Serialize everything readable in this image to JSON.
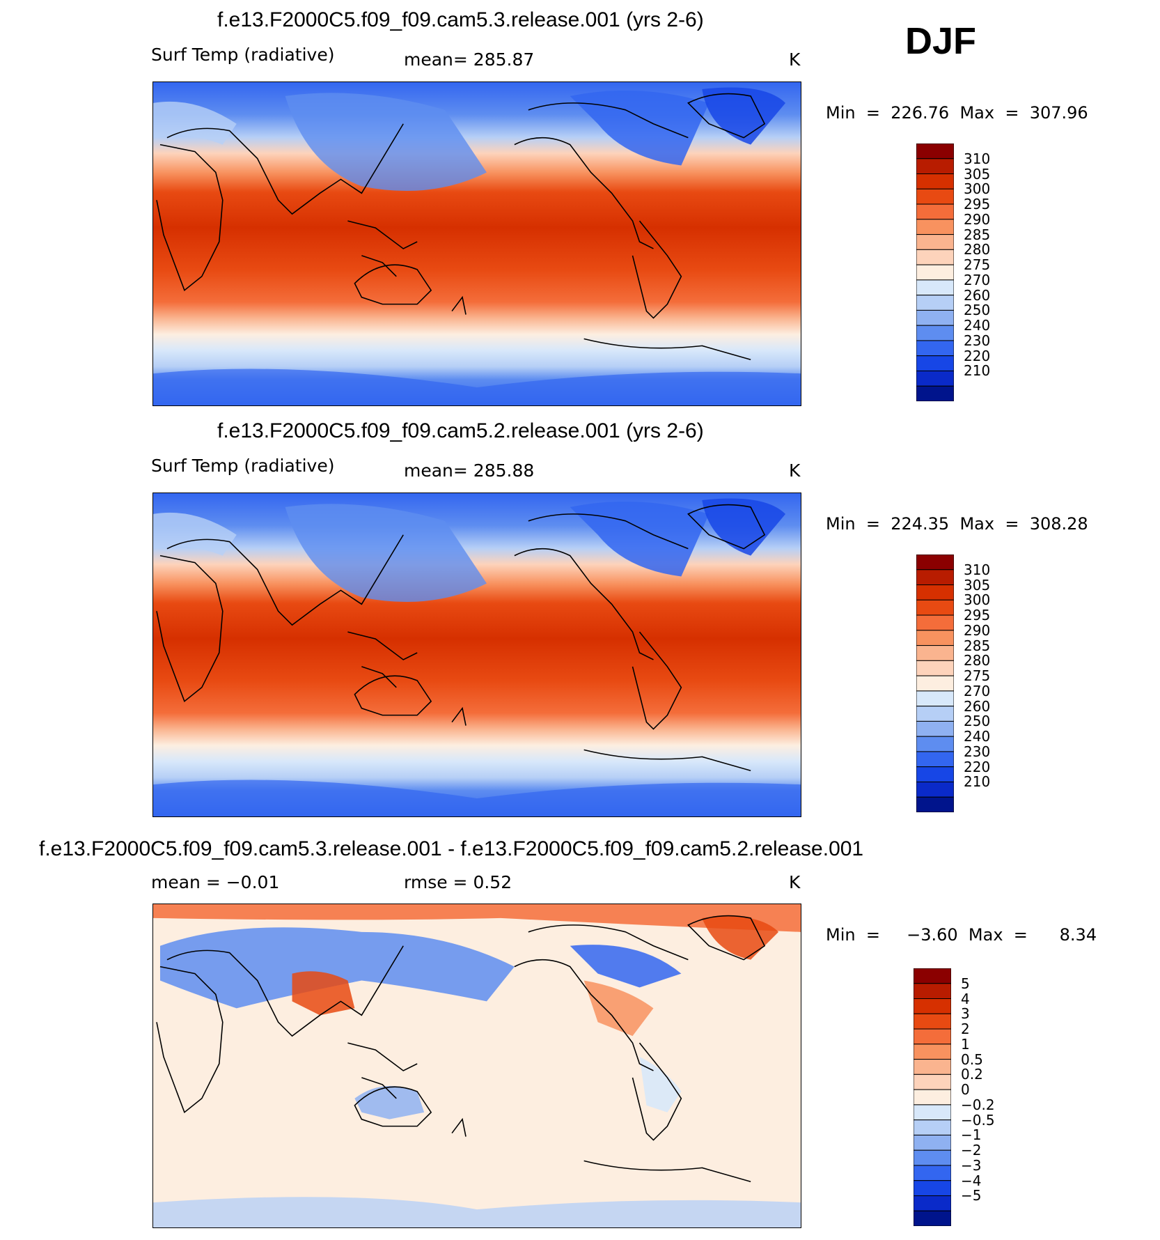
{
  "season": "DJF",
  "panels": [
    {
      "title": "f.e13.F2000C5.f09_f09.cam5.3.release.001 (yrs 2-6)",
      "variable": "Surf Temp (radiative)",
      "stat": "mean= 285.87",
      "units": "K",
      "minmax": "Min  =  226.76  Max  =  307.96"
    },
    {
      "title": "f.e13.F2000C5.f09_f09.cam5.2.release.001 (yrs 2-6)",
      "variable": "Surf Temp (radiative)",
      "stat": "mean= 285.88",
      "units": "K",
      "minmax": "Min  =  224.35  Max  =  308.28"
    },
    {
      "title": "f.e13.F2000C5.f09_f09.cam5.3.release.001 - f.e13.F2000C5.f09_f09.cam5.2.release.001",
      "variable": "mean  =    −0.01",
      "stat": "rmse  =     0.52",
      "units": "K",
      "minmax": "Min  =     −3.60  Max  =      8.34"
    }
  ],
  "chart_data": [
    {
      "type": "heatmap",
      "title": "f.e13.F2000C5.f09_f09.cam5.3.release.001 (yrs 2-6)",
      "variable": "Surf Temp (radiative)",
      "units": "K",
      "mean": 285.87,
      "min": 226.76,
      "max": 307.96,
      "colorbar_ticks": [
        "310",
        "305",
        "300",
        "295",
        "290",
        "285",
        "280",
        "275",
        "270",
        "260",
        "250",
        "240",
        "230",
        "220",
        "210"
      ],
      "colorbar_colors": [
        "#8b0000",
        "#b81c00",
        "#d63000",
        "#e84a12",
        "#f46d3a",
        "#f8925f",
        "#fab48f",
        "#fdd3bb",
        "#fdeee0",
        "#d8e8fa",
        "#b6cff6",
        "#8fb1f1",
        "#5e8df0",
        "#3366f0",
        "#1746e6",
        "#0a2ac9",
        "#00148c"
      ]
    },
    {
      "type": "heatmap",
      "title": "f.e13.F2000C5.f09_f09.cam5.2.release.001 (yrs 2-6)",
      "variable": "Surf Temp (radiative)",
      "units": "K",
      "mean": 285.88,
      "min": 224.35,
      "max": 308.28,
      "colorbar_ticks": [
        "310",
        "305",
        "300",
        "295",
        "290",
        "285",
        "280",
        "275",
        "270",
        "260",
        "250",
        "240",
        "230",
        "220",
        "210"
      ],
      "colorbar_colors": [
        "#8b0000",
        "#b81c00",
        "#d63000",
        "#e84a12",
        "#f46d3a",
        "#f8925f",
        "#fab48f",
        "#fdd3bb",
        "#fdeee0",
        "#d8e8fa",
        "#b6cff6",
        "#8fb1f1",
        "#5e8df0",
        "#3366f0",
        "#1746e6",
        "#0a2ac9",
        "#00148c"
      ]
    },
    {
      "type": "heatmap",
      "title": "f.e13.F2000C5.f09_f09.cam5.3.release.001 - f.e13.F2000C5.f09_f09.cam5.2.release.001",
      "units": "K",
      "mean": -0.01,
      "rmse": 0.52,
      "min": -3.6,
      "max": 8.34,
      "colorbar_ticks": [
        "5",
        "4",
        "3",
        "2",
        "1",
        "0.5",
        "0.2",
        "0",
        "−0.2",
        "−0.5",
        "−1",
        "−2",
        "−3",
        "−4",
        "−5"
      ],
      "colorbar_colors": [
        "#8b0000",
        "#b81c00",
        "#d63000",
        "#e84a12",
        "#f46d3a",
        "#f8925f",
        "#fab48f",
        "#fdd3bb",
        "#fdeee0",
        "#d8e8fa",
        "#b6cff6",
        "#8fb1f1",
        "#5e8df0",
        "#3366f0",
        "#1746e6",
        "#0a2ac9",
        "#00148c"
      ]
    }
  ]
}
